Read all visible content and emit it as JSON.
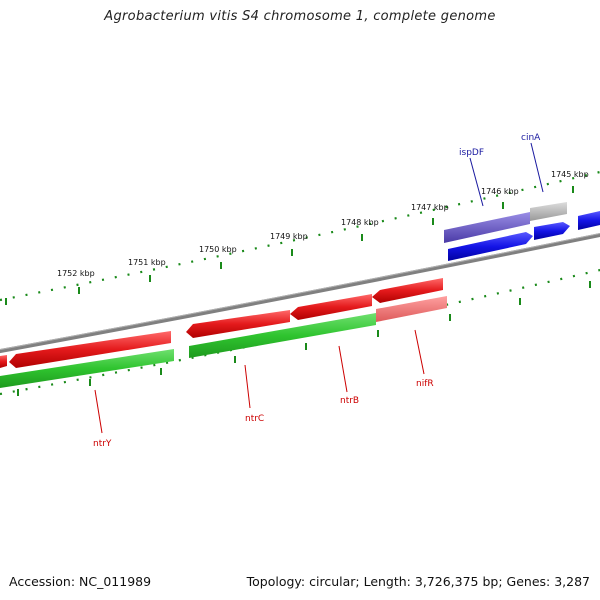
{
  "title": "Agrobacterium vitis S4 chromosome 1, complete genome",
  "footer": {
    "accession": "Accession: NC_011989",
    "summary": "Topology: circular; Length: 3,726,375 bp; Genes: 3,287"
  },
  "ruler_labels": [
    "1745 kbp",
    "1746 kbp",
    "1747 kbp",
    "1748 kbp",
    "1749 kbp",
    "1750 kbp",
    "1751 kbp",
    "1752 kbp"
  ],
  "gene_labels": {
    "ntrY": "ntrY",
    "ntrC": "ntrC",
    "ntrB": "ntrB",
    "nifR": "nifR",
    "ispDF": "ispDF",
    "cinA": "cinA"
  },
  "colors": {
    "backbone": "#808080",
    "cds_red": "#e41a1c",
    "gene_green": "#33cc33",
    "gene_blue": "#1f1fe6",
    "gene_purple": "#7060cc",
    "gene_grey": "#bbbbbb",
    "gene_pink": "#ee7777",
    "tick_green": "#1a8a1a"
  }
}
